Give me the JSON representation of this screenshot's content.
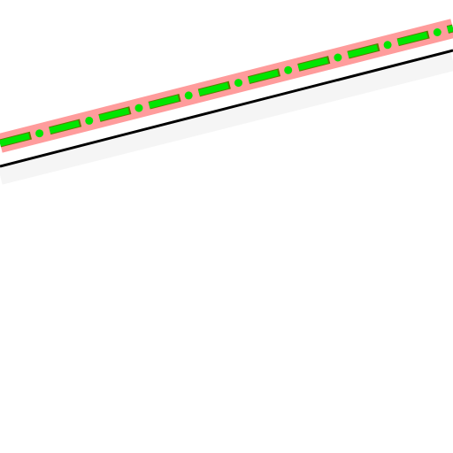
{
  "map": {
    "background_color": "#ffffff",
    "road": {
      "casing_color": "#ff9c9c",
      "edge_color": "#000000",
      "shoulder_color": "#f5f5f5",
      "centerline_color": "#00e600",
      "centerline_dark_color": "#5a7d00"
    }
  }
}
